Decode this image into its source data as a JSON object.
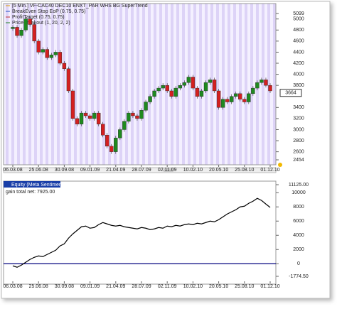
{
  "chart_data": [
    {
      "type": "bar",
      "legend_lines": [
        "[5 Min.] VF-CAC40 DEC10    ENXT_PAR WHS BG SuperTrend",
        "BreakEven Stop EoP  (0.75, 0.75)",
        "ProfitTarget  (0.75, 0.75)",
        "PriceBreakout  (1, 20, 2, 2)"
      ],
      "categories": [
        "06.03.08",
        null,
        null,
        null,
        null,
        null,
        "25.06.08",
        null,
        null,
        null,
        null,
        null,
        "30.09.08",
        null,
        null,
        null,
        null,
        null,
        "09.01.09",
        null,
        null,
        null,
        null,
        null,
        "21.04.09",
        null,
        null,
        null,
        null,
        null,
        "28.07.09",
        null,
        null,
        null,
        null,
        null,
        "02.11.09",
        null,
        null,
        null,
        null,
        null,
        "10.02.10",
        null,
        null,
        null,
        null,
        null,
        "20.05.10",
        null,
        null,
        null,
        null,
        null,
        "25.08.10",
        null,
        null,
        null,
        null,
        null,
        "01.12.10"
      ],
      "values": [
        4850,
        4700,
        4800,
        5000,
        4900,
        4600,
        4400,
        4450,
        4300,
        4350,
        4400,
        4200,
        4100,
        3700,
        3200,
        3100,
        3300,
        3250,
        3200,
        3300,
        3100,
        2900,
        2700,
        2600,
        2850,
        3000,
        3150,
        3300,
        3250,
        3200,
        3350,
        3500,
        3600,
        3700,
        3750,
        3800,
        3700,
        3600,
        3750,
        3800,
        3850,
        3950,
        3750,
        3600,
        3700,
        3850,
        3900,
        3700,
        3400,
        3550,
        3500,
        3600,
        3650,
        3550,
        3500,
        3650,
        3750,
        3850,
        3900,
        3800,
        3700
      ],
      "ylim": [
        2454,
        5099
      ],
      "yticks": [
        {
          "value": 5099,
          "label": "5099"
        },
        5000,
        4800,
        4600,
        4400,
        4200,
        4000,
        3800,
        3400,
        3200,
        3000,
        2800,
        2600,
        {
          "value": 2454,
          "label": "2454"
        }
      ],
      "last_value": 3664,
      "up_color": "#1f8a1f",
      "down_color": "#d42020"
    },
    {
      "type": "line",
      "title": "Equity (Meta Sentimentor)",
      "subtitle": "gain total net: 7925.00",
      "categories": [
        "06.03.08",
        null,
        null,
        null,
        null,
        null,
        "25.06.08",
        null,
        null,
        null,
        null,
        null,
        "30.09.08",
        null,
        null,
        null,
        null,
        null,
        "09.01.09",
        null,
        null,
        null,
        null,
        null,
        "21.04.09",
        null,
        null,
        null,
        null,
        null,
        "28.07.09",
        null,
        null,
        null,
        null,
        null,
        "02.11.09",
        null,
        null,
        null,
        null,
        null,
        "10.02.10",
        null,
        null,
        null,
        null,
        null,
        "20.05.10",
        null,
        null,
        null,
        null,
        null,
        "25.08.10",
        null,
        null,
        null,
        null,
        null,
        "01.12.10"
      ],
      "values": [
        -300,
        -500,
        -200,
        200,
        600,
        900,
        1100,
        1000,
        1300,
        1600,
        1900,
        2500,
        2800,
        3600,
        4200,
        4700,
        5200,
        5300,
        5000,
        5100,
        5500,
        5800,
        5600,
        5400,
        5300,
        5400,
        5200,
        5100,
        5000,
        4900,
        5100,
        5000,
        4800,
        4900,
        5100,
        5000,
        5300,
        5200,
        5400,
        5300,
        5500,
        5600,
        5500,
        5700,
        5600,
        5800,
        6000,
        5900,
        6200,
        6600,
        7000,
        7300,
        7600,
        8000,
        8100,
        8500,
        8800,
        9200,
        8900,
        8400,
        7925
      ],
      "ylim": [
        -1774.5,
        11125
      ],
      "yticks": [
        {
          "value": 11125,
          "label": "11125.00"
        },
        10000,
        8000,
        6000,
        4000,
        2000,
        0,
        {
          "value": -1774.5,
          "label": "-1774.50"
        }
      ],
      "color": "#000000",
      "zero_line_color": "#00007f"
    }
  ]
}
